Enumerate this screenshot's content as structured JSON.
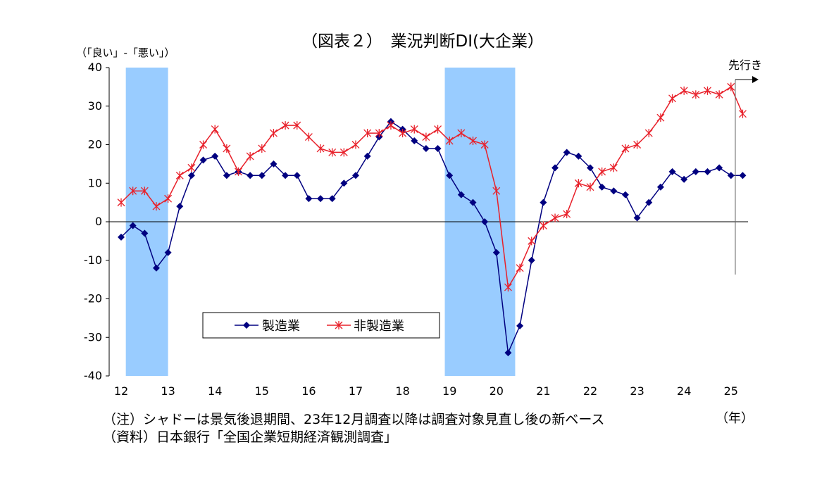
{
  "chart_data": {
    "type": "line",
    "title": "（図表２）　業況判断DI(大企業）",
    "ylabel": "（「良い」-「悪い」）",
    "xlabel": "（年）",
    "ylim": [
      -40,
      40
    ],
    "yticks": [
      40,
      30,
      20,
      10,
      0,
      -10,
      -20,
      -30,
      -40
    ],
    "ytick_labels": [
      "40",
      "30",
      "20",
      "10",
      "0",
      "-10",
      "-20",
      "-30",
      "-40"
    ],
    "x_start": 2012.0,
    "x_end": 2025.5,
    "year_ticks": [
      "12",
      "13",
      "14",
      "15",
      "16",
      "17",
      "18",
      "19",
      "20",
      "21",
      "22",
      "23",
      "24",
      "25"
    ],
    "shaded_regions": [
      [
        2012.1,
        2013.0
      ],
      [
        2018.9,
        2020.4
      ]
    ],
    "forecast_label": "先行き",
    "series": [
      {
        "name": "製造業",
        "color": "#000080",
        "marker": "diamond",
        "x": [
          2012.0,
          2012.25,
          2012.5,
          2012.75,
          2013.0,
          2013.25,
          2013.5,
          2013.75,
          2014.0,
          2014.25,
          2014.5,
          2014.75,
          2015.0,
          2015.25,
          2015.5,
          2015.75,
          2016.0,
          2016.25,
          2016.5,
          2016.75,
          2017.0,
          2017.25,
          2017.5,
          2017.75,
          2018.0,
          2018.25,
          2018.5,
          2018.75,
          2019.0,
          2019.25,
          2019.5,
          2019.75,
          2020.0,
          2020.25,
          2020.5,
          2020.75,
          2021.0,
          2021.25,
          2021.5,
          2021.75,
          2022.0,
          2022.25,
          2022.5,
          2022.75,
          2023.0,
          2023.25,
          2023.5,
          2023.75,
          2024.0,
          2024.25,
          2024.5,
          2024.75,
          2025.0,
          2025.25
        ],
        "values": [
          -4,
          -1,
          -3,
          -12,
          -8,
          4,
          12,
          16,
          17,
          12,
          13,
          12,
          12,
          15,
          12,
          12,
          6,
          6,
          6,
          10,
          12,
          17,
          22,
          26,
          24,
          21,
          19,
          19,
          12,
          7,
          5,
          0,
          -8,
          -34,
          -27,
          -10,
          5,
          14,
          18,
          17,
          14,
          9,
          8,
          7,
          1,
          5,
          9,
          13,
          11,
          13,
          13,
          14,
          12,
          12
        ]
      },
      {
        "name": "非製造業",
        "color": "#e8202a",
        "marker": "star",
        "x": [
          2012.0,
          2012.25,
          2012.5,
          2012.75,
          2013.0,
          2013.25,
          2013.5,
          2013.75,
          2014.0,
          2014.25,
          2014.5,
          2014.75,
          2015.0,
          2015.25,
          2015.5,
          2015.75,
          2016.0,
          2016.25,
          2016.5,
          2016.75,
          2017.0,
          2017.25,
          2017.5,
          2017.75,
          2018.0,
          2018.25,
          2018.5,
          2018.75,
          2019.0,
          2019.25,
          2019.5,
          2019.75,
          2020.0,
          2020.25,
          2020.5,
          2020.75,
          2021.0,
          2021.25,
          2021.5,
          2021.75,
          2022.0,
          2022.25,
          2022.5,
          2022.75,
          2023.0,
          2023.25,
          2023.5,
          2023.75,
          2024.0,
          2024.25,
          2024.5,
          2024.75,
          2025.0,
          2025.25
        ],
        "values": [
          5,
          8,
          8,
          4,
          6,
          12,
          14,
          20,
          24,
          19,
          13,
          17,
          19,
          23,
          25,
          25,
          22,
          19,
          18,
          18,
          20,
          23,
          23,
          25,
          23,
          24,
          22,
          24,
          21,
          23,
          21,
          20,
          8,
          -17,
          -12,
          -5,
          -1,
          1,
          2,
          10,
          9,
          13,
          14,
          19,
          20,
          23,
          27,
          32,
          34,
          33,
          34,
          33,
          35,
          28
        ]
      }
    ]
  },
  "notes": {
    "note": "（注）シャドーは景気後退期間、23年12月調査以降は調査対象見直し後の新ベース",
    "source": "（資料）日本銀行「全国企業短期経済観測調査」"
  }
}
